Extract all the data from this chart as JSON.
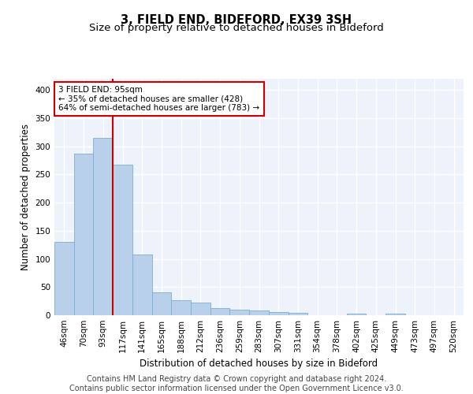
{
  "title1": "3, FIELD END, BIDEFORD, EX39 3SH",
  "title2": "Size of property relative to detached houses in Bideford",
  "xlabel": "Distribution of detached houses by size in Bideford",
  "ylabel": "Number of detached properties",
  "categories": [
    "46sqm",
    "70sqm",
    "93sqm",
    "117sqm",
    "141sqm",
    "165sqm",
    "188sqm",
    "212sqm",
    "236sqm",
    "259sqm",
    "283sqm",
    "307sqm",
    "331sqm",
    "354sqm",
    "378sqm",
    "402sqm",
    "425sqm",
    "449sqm",
    "473sqm",
    "497sqm",
    "520sqm"
  ],
  "values": [
    130,
    287,
    315,
    267,
    108,
    41,
    26,
    23,
    13,
    10,
    8,
    5,
    4,
    0,
    0,
    3,
    0,
    3,
    0,
    0,
    0
  ],
  "bar_color": "#b8d0ea",
  "bar_edge_color": "#7aadd4",
  "vline_color": "#cc0000",
  "vline_bar_index": 2,
  "annotation_text": "3 FIELD END: 95sqm\n← 35% of detached houses are smaller (428)\n64% of semi-detached houses are larger (783) →",
  "annotation_box_facecolor": "#ffffff",
  "annotation_box_edgecolor": "#cc0000",
  "ylim": [
    0,
    420
  ],
  "yticks": [
    0,
    50,
    100,
    150,
    200,
    250,
    300,
    350,
    400
  ],
  "background_color": "#eef2fb",
  "grid_color": "#ffffff",
  "footer_text": "Contains HM Land Registry data © Crown copyright and database right 2024.\nContains public sector information licensed under the Open Government Licence v3.0.",
  "title1_fontsize": 10.5,
  "title2_fontsize": 9.5,
  "xlabel_fontsize": 8.5,
  "ylabel_fontsize": 8.5,
  "tick_fontsize": 7.5,
  "annotation_fontsize": 7.5,
  "footer_fontsize": 7.0
}
